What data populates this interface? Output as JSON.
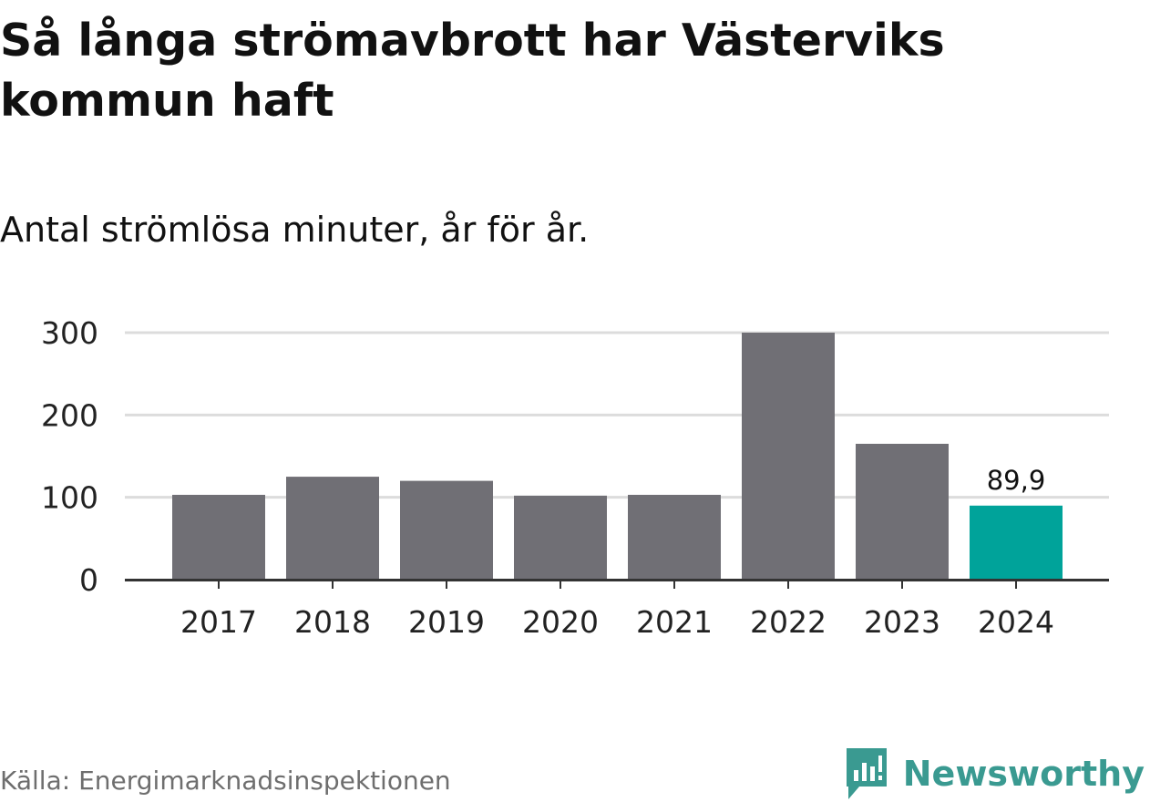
{
  "header": {
    "title": "Så långa strömavbrott har Västerviks kommun haft",
    "subtitle": "Antal strömlösa minuter, år för år."
  },
  "footer": {
    "source": "Källa: Energimarknadsinspektionen",
    "brand": "Newsworthy",
    "brand_icon": "newsworthy-logo-icon"
  },
  "colors": {
    "bar": "#706f75",
    "highlight": "#00a39a",
    "grid": "#dcdcdc",
    "axis": "#333333",
    "brand": "#3a9a91"
  },
  "chart_data": {
    "type": "bar",
    "title": "Så långa strömavbrott har Västerviks kommun haft",
    "subtitle": "Antal strömlösa minuter, år för år.",
    "xlabel": "",
    "ylabel": "",
    "categories": [
      "2017",
      "2018",
      "2019",
      "2020",
      "2021",
      "2022",
      "2023",
      "2024"
    ],
    "values": [
      103,
      125,
      120,
      102,
      103,
      300,
      165,
      89.9
    ],
    "highlight_index": 7,
    "data_labels": [
      {
        "index": 7,
        "text": "89,9"
      }
    ],
    "ylim": [
      0,
      300
    ],
    "yticks": [
      0,
      100,
      200,
      300
    ],
    "ytick_labels": [
      "0",
      "100",
      "200",
      "300"
    ],
    "grid": true,
    "legend": "none"
  }
}
